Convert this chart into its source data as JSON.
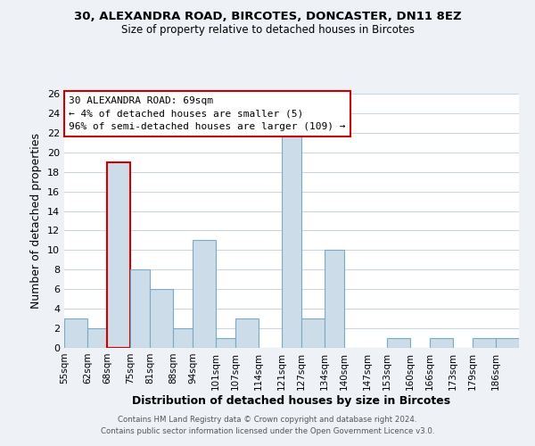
{
  "title1": "30, ALEXANDRA ROAD, BIRCOTES, DONCASTER, DN11 8EZ",
  "title2": "Size of property relative to detached houses in Bircotes",
  "xlabel": "Distribution of detached houses by size in Bircotes",
  "ylabel": "Number of detached properties",
  "bin_labels": [
    "55sqm",
    "62sqm",
    "68sqm",
    "75sqm",
    "81sqm",
    "88sqm",
    "94sqm",
    "101sqm",
    "107sqm",
    "114sqm",
    "121sqm",
    "127sqm",
    "134sqm",
    "140sqm",
    "147sqm",
    "153sqm",
    "160sqm",
    "166sqm",
    "173sqm",
    "179sqm",
    "186sqm"
  ],
  "bin_edges": [
    55,
    62,
    68,
    75,
    81,
    88,
    94,
    101,
    107,
    114,
    121,
    127,
    134,
    140,
    147,
    153,
    160,
    166,
    173,
    179,
    186,
    193
  ],
  "counts": [
    3,
    2,
    19,
    8,
    6,
    2,
    11,
    1,
    3,
    0,
    22,
    3,
    10,
    0,
    0,
    1,
    0,
    1,
    0,
    1,
    1
  ],
  "bar_color": "#ccdce8",
  "bar_edge_color": "#7aaac8",
  "highlight_bar_index": 2,
  "highlight_edge_color": "#cc0000",
  "annotation_title": "30 ALEXANDRA ROAD: 69sqm",
  "annotation_line1": "← 4% of detached houses are smaller (5)",
  "annotation_line2": "96% of semi-detached houses are larger (109) →",
  "annotation_box_edge_color": "#cc0000",
  "ylim": [
    0,
    26
  ],
  "yticks": [
    0,
    2,
    4,
    6,
    8,
    10,
    12,
    14,
    16,
    18,
    20,
    22,
    24,
    26
  ],
  "footer1": "Contains HM Land Registry data © Crown copyright and database right 2024.",
  "footer2": "Contains public sector information licensed under the Open Government Licence v3.0.",
  "bg_color": "#eef2f6",
  "plot_bg_color": "#ffffff",
  "grid_color": "#c8d4e0"
}
